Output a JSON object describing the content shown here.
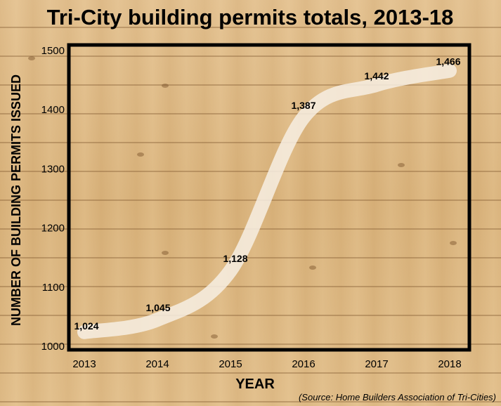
{
  "chart_data": {
    "type": "line",
    "title": "Tri-City building permits totals, 2013-18",
    "xlabel": "YEAR",
    "ylabel": "NUMBER OF BUILDING PERMITS ISSUED",
    "x": [
      "2013",
      "2014",
      "2015",
      "2016",
      "2017",
      "2018"
    ],
    "values": [
      1024,
      1045,
      1128,
      1387,
      1442,
      1466
    ],
    "data_labels": [
      "1,024",
      "1,045",
      "1,128",
      "1,387",
      "1,442",
      "1,466"
    ],
    "y_ticks": [
      "1000",
      "1100",
      "1200",
      "1300",
      "1400",
      "1500"
    ],
    "ylim": [
      1000,
      1500
    ],
    "grid": false,
    "line_color": "#f7efe3",
    "frame_color": "#000000",
    "source": "(Source: Home Builders Association of Tri-Cities)"
  }
}
